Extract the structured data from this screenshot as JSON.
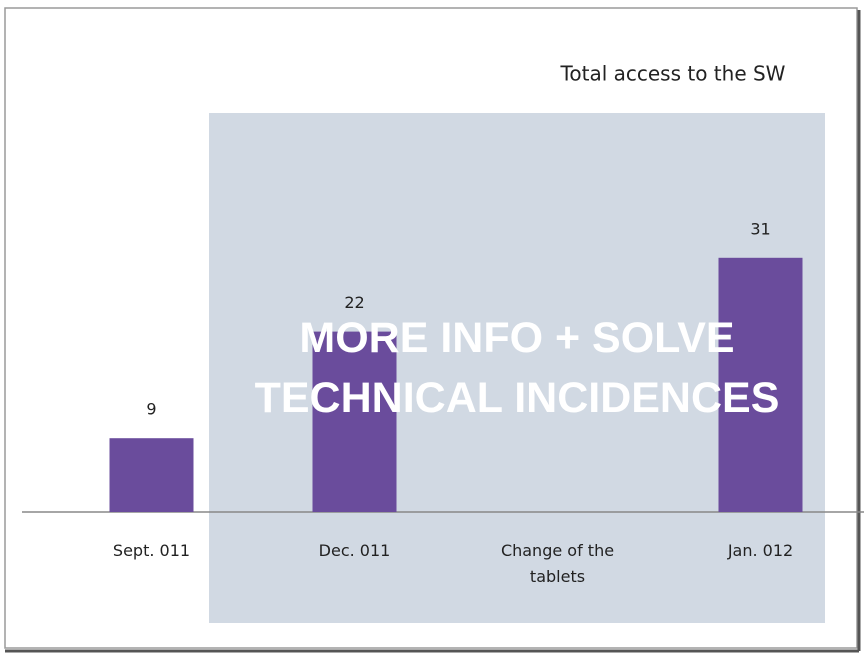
{
  "chart_data": {
    "type": "bar",
    "title": "Total access to the SW",
    "categories": [
      "Sept. 011",
      "Dec. 011",
      "Change of the tablets",
      "Jan. 012"
    ],
    "values": [
      9,
      22,
      null,
      31
    ],
    "color": "#6a4c9c",
    "ylim": [
      0,
      35
    ],
    "annotation": "MORE INFO + SOLVE TECHNICAL INCIDENCES"
  }
}
